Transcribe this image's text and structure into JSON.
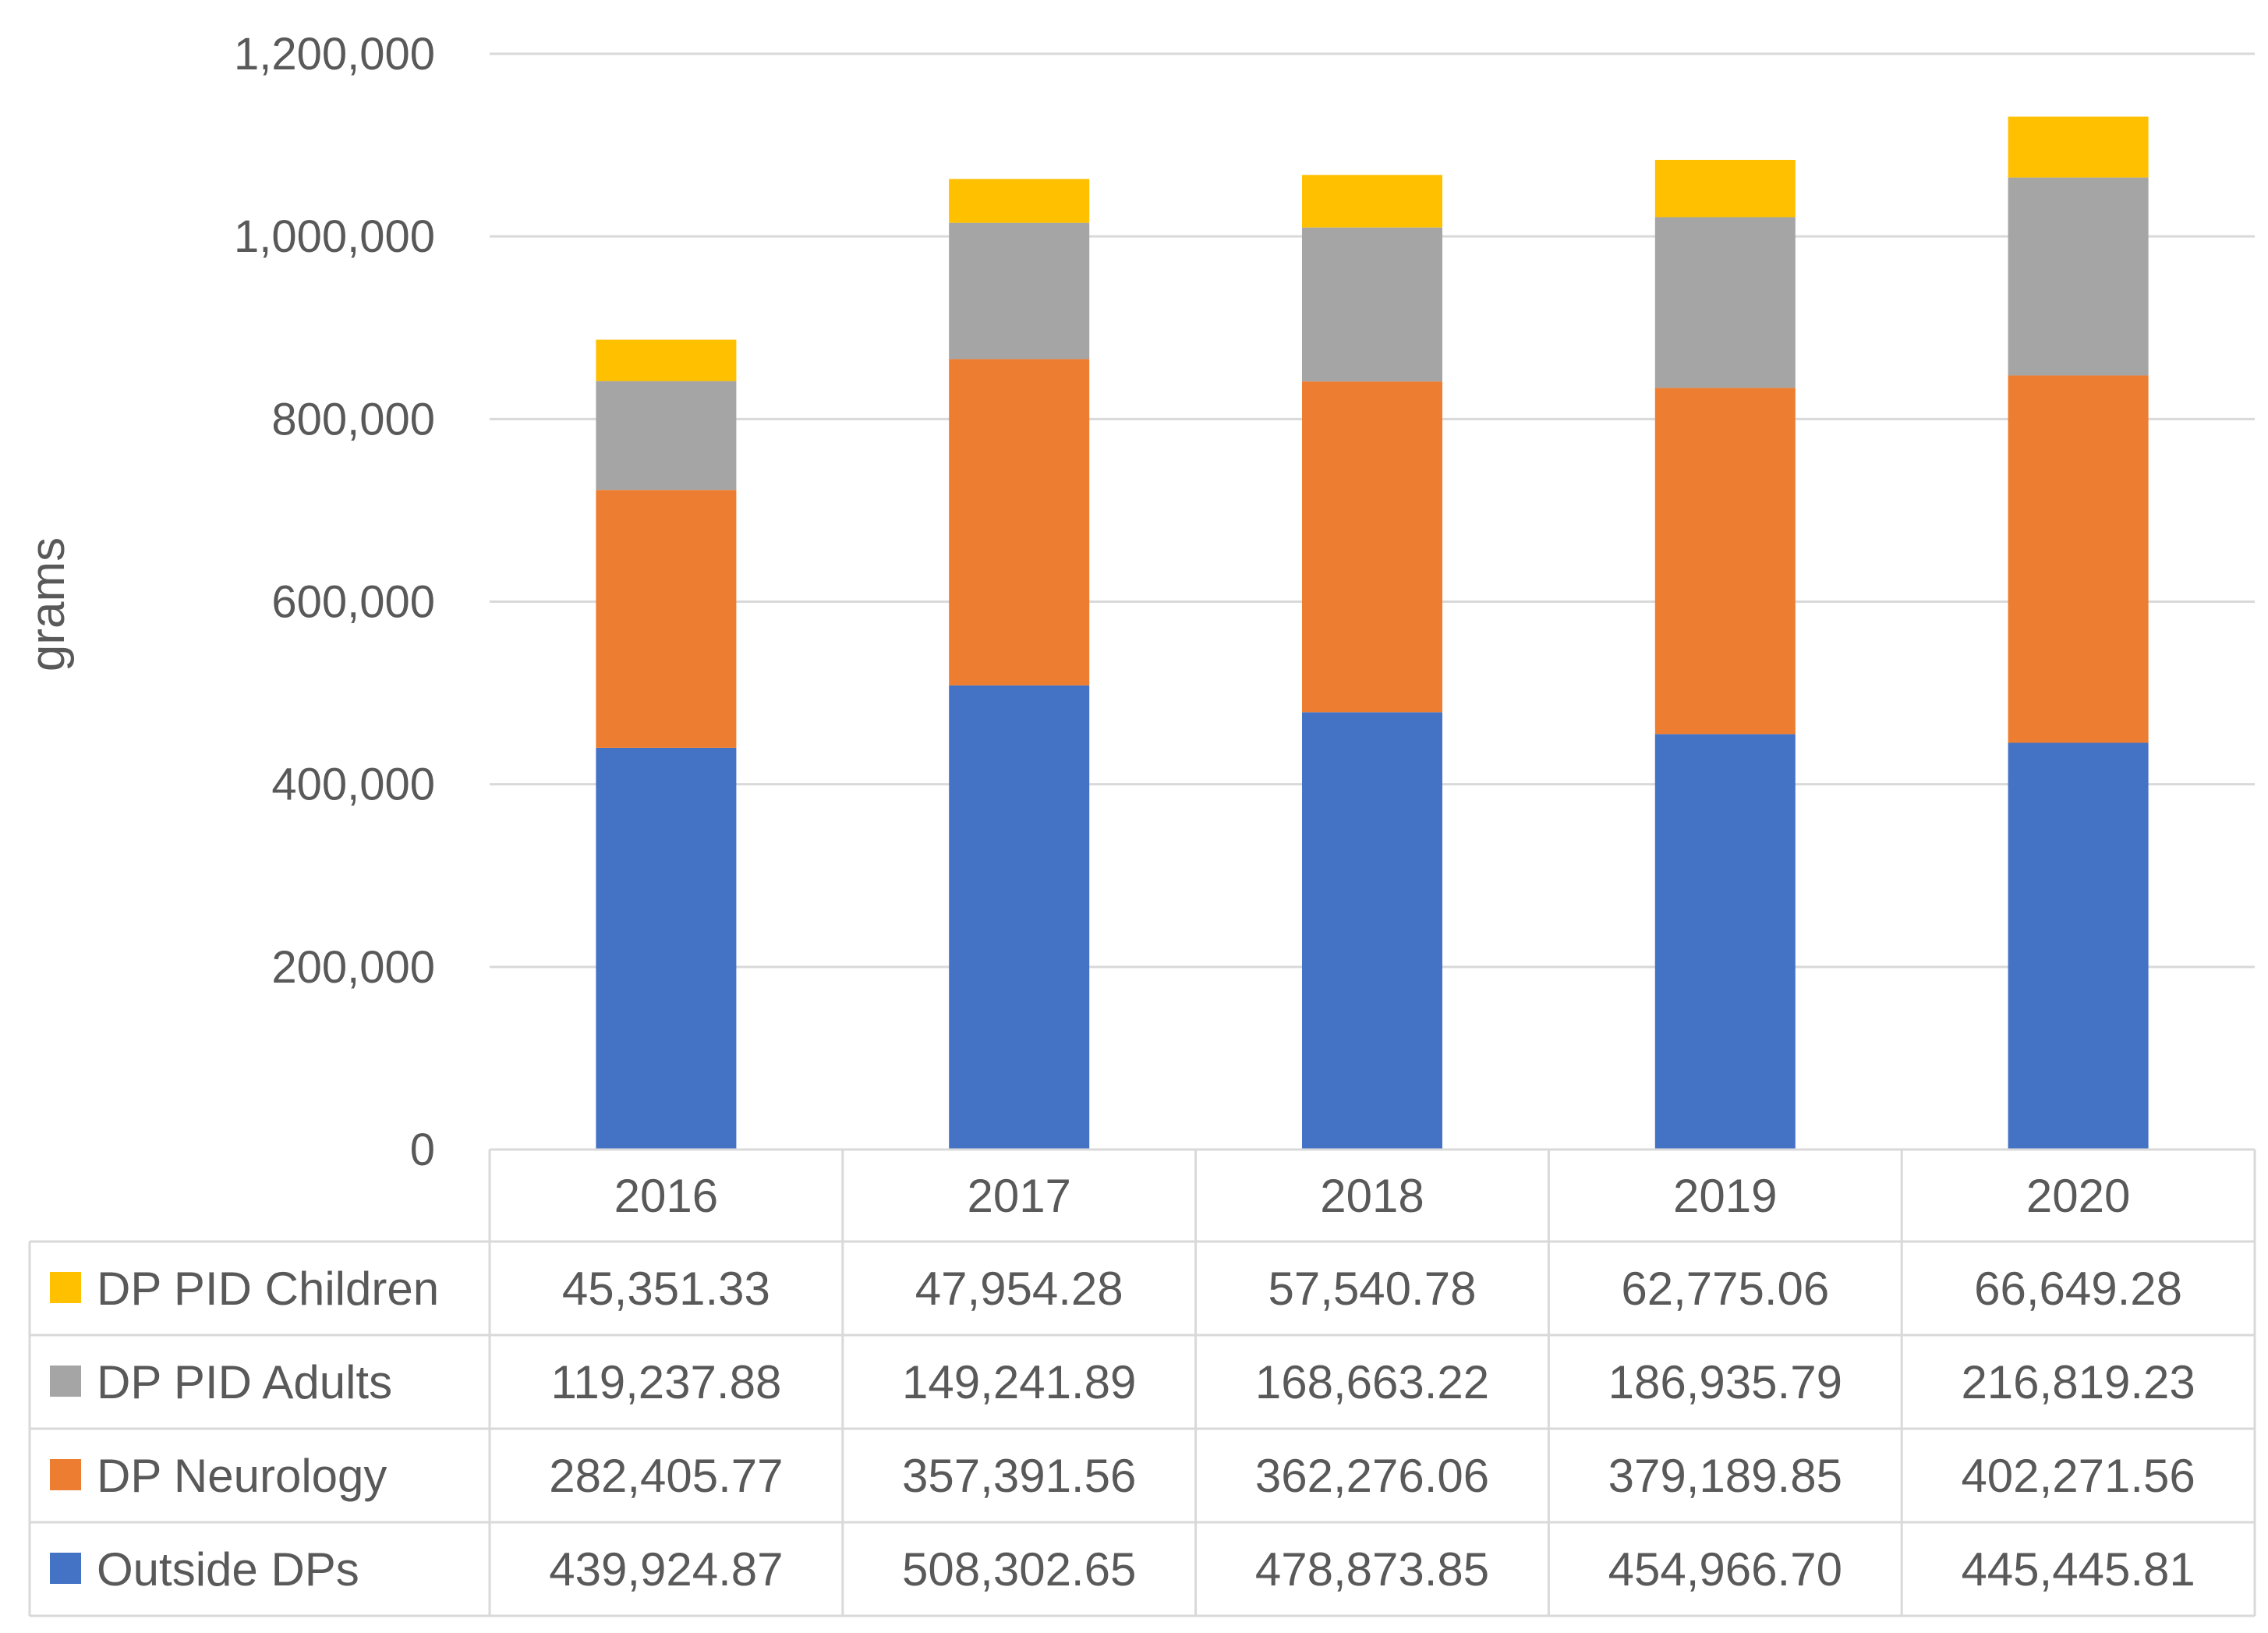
{
  "chart_data": {
    "type": "bar",
    "stacked": true,
    "categories": [
      "2016",
      "2017",
      "2018",
      "2019",
      "2020"
    ],
    "series": [
      {
        "name": "Outside DPs",
        "color": "#4472c4",
        "values": [
          439924.87,
          508302.65,
          478873.85,
          454966.7,
          445445.81
        ],
        "labels": [
          "439,924.87",
          "508,302.65",
          "478,873.85",
          "454,966.70",
          "445,445.81"
        ]
      },
      {
        "name": "DP Neurology",
        "color": "#ed7d31",
        "values": [
          282405.77,
          357391.56,
          362276.06,
          379189.85,
          402271.56
        ],
        "labels": [
          "282,405.77",
          "357,391.56",
          "362,276.06",
          "379,189.85",
          "402,271.56"
        ]
      },
      {
        "name": "DP PID Adults",
        "color": "#a5a5a5",
        "values": [
          119237.88,
          149241.89,
          168663.22,
          186935.79,
          216819.23
        ],
        "labels": [
          "119,237.88",
          "149,241.89",
          "168,663.22",
          "186,935.79",
          "216,819.23"
        ]
      },
      {
        "name": "DP PID Children",
        "color": "#ffc000",
        "values": [
          45351.33,
          47954.28,
          57540.78,
          62775.06,
          66649.28
        ],
        "labels": [
          "45,351.33",
          "47,954.28",
          "57,540.78",
          "62,775.06",
          "66,649.28"
        ]
      }
    ],
    "ylabel": "grams",
    "xlabel": "",
    "ylim": [
      0,
      1200000
    ],
    "yticks": [
      0,
      200000,
      400000,
      600000,
      800000,
      1000000,
      1200000
    ],
    "ytick_labels": [
      "0",
      "200,000",
      "400,000",
      "600,000",
      "800,000",
      "1,000,000",
      "1,200,000"
    ],
    "grid": true,
    "legend": "data-table-left",
    "table_row_order": [
      "DP PID Children",
      "DP PID Adults",
      "DP Neurology",
      "Outside DPs"
    ]
  }
}
